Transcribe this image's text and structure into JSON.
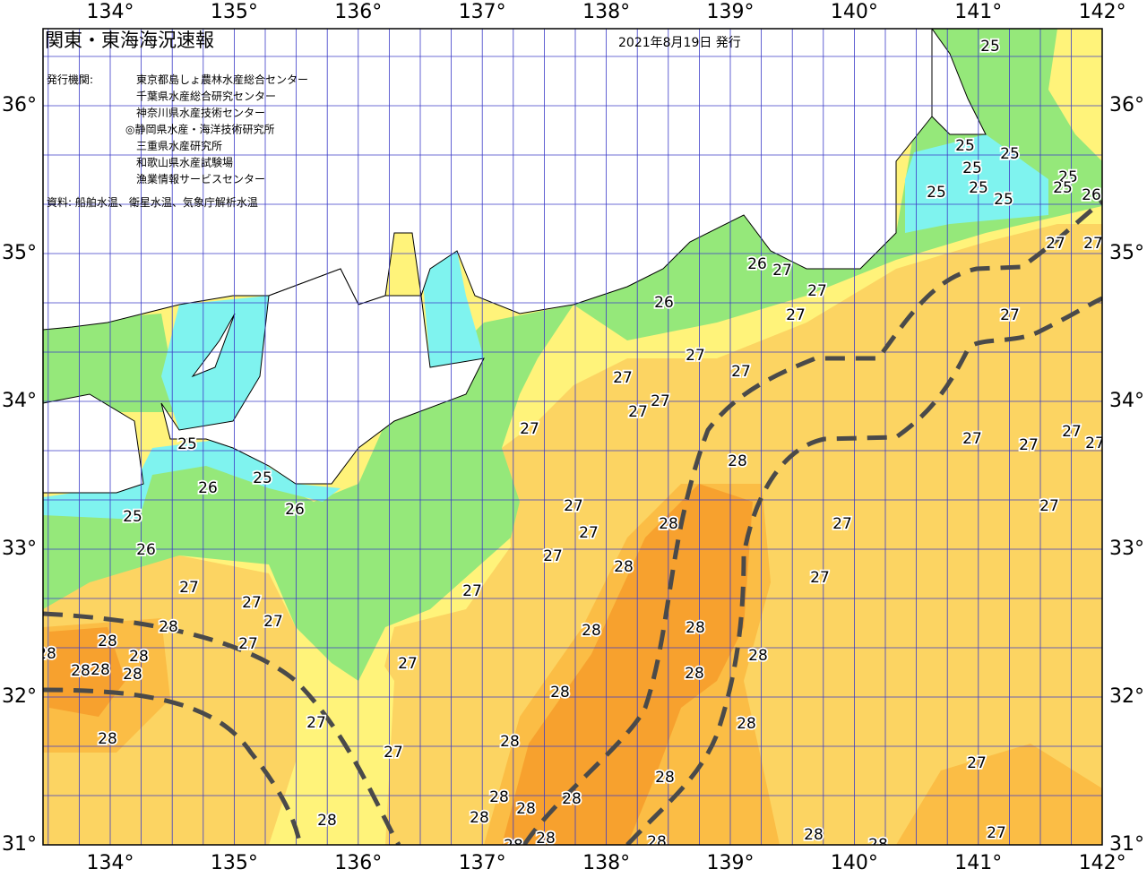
{
  "header": {
    "title": "関東・東海海況速報",
    "date": "2021年8月19日 発行"
  },
  "issuers": {
    "label": "発行機関:",
    "list": [
      "東京都島しょ農林水産総合センター",
      "千葉県水産総合研究センター",
      "神奈川県水産技術センター",
      "◎静岡県水産・海洋技術研究所",
      "三重県水産研究所",
      "和歌山県水産試験場",
      "漁業情報サービスセンター"
    ]
  },
  "source": "資料: 船舶水温、衛星水温、気象庁解析水温",
  "longitude_labels": [
    "134°",
    "135°",
    "136°",
    "137°",
    "138°",
    "139°",
    "140°",
    "141°",
    "142°"
  ],
  "latitude_labels": [
    "31°",
    "32°",
    "33°",
    "34°",
    "35°",
    "36°"
  ],
  "contour_labels": [
    "25",
    "25",
    "25",
    "25",
    "25",
    "25",
    "25",
    "25",
    "25",
    "26",
    "27",
    "27",
    "26",
    "27",
    "27",
    "26",
    "27",
    "27",
    "27",
    "27",
    "27",
    "27",
    "27",
    "27",
    "27",
    "27",
    "27",
    "27",
    "25",
    "28",
    "25",
    "26",
    "26",
    "27",
    "27",
    "25",
    "28",
    "27",
    "27",
    "26",
    "27",
    "28",
    "27",
    "27",
    "27",
    "27",
    "27",
    "28",
    "28",
    "28",
    "28",
    "27",
    "28",
    "28",
    "27",
    "28",
    "28",
    "28",
    "28",
    "28",
    "27",
    "28",
    "28",
    "28",
    "27",
    "27",
    "28",
    "28",
    "28",
    "28",
    "28",
    "28",
    "27",
    "28",
    "28",
    "28",
    "28",
    "28",
    "28"
  ]
}
